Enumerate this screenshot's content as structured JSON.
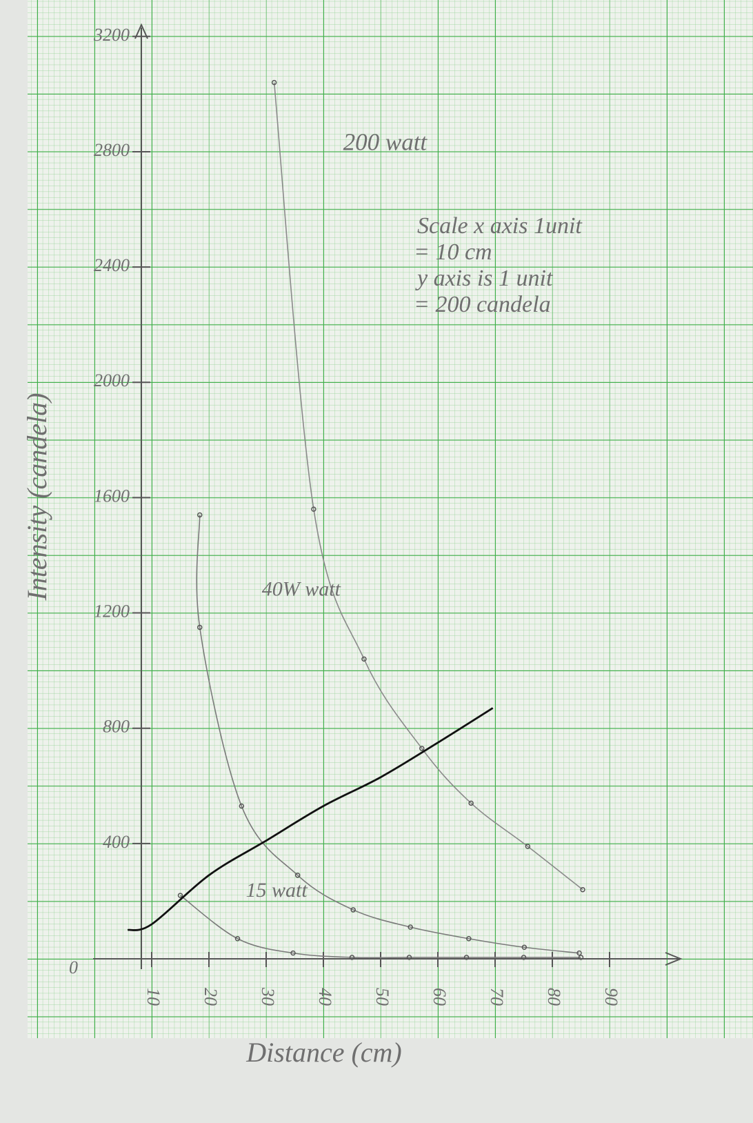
{
  "chart_data": {
    "type": "line",
    "x_label": "Distance (cm)",
    "y_label": "Intensity (candela)",
    "origin_label": "0",
    "note": [
      "Scale x axis 1unit",
      "= 10 cm",
      "y axis is 1 unit",
      "= 200 candela"
    ],
    "xlim": [
      0,
      100
    ],
    "ylim": [
      0,
      3300
    ],
    "xticks": [
      10,
      20,
      30,
      40,
      50,
      60,
      70,
      80,
      90
    ],
    "yticks": [
      400,
      800,
      1200,
      1600,
      2000,
      2400,
      2800,
      3200
    ],
    "grid": true,
    "series": [
      {
        "name": "200 watt",
        "color": "#8a8a8a",
        "markers": true,
        "x": [
          31.4,
          38.3,
          47.1,
          57.2,
          65.8,
          75.7,
          85.3
        ],
        "values": [
          3040,
          1560,
          1040,
          730,
          540,
          390,
          240
        ]
      },
      {
        "name": "40W watt",
        "color": "#7a7a7a",
        "markers": true,
        "x": [
          18.4,
          18.4,
          25.7,
          35.5,
          45.2,
          55.2,
          65.4,
          75.1,
          84.7
        ],
        "values": [
          1540,
          1150,
          530,
          290,
          170,
          110,
          70,
          40,
          20
        ]
      },
      {
        "name": "15 watt",
        "color": "#7a7a7a",
        "markers": true,
        "x": [
          15,
          25,
          34.7,
          45,
          55,
          65,
          75,
          85
        ],
        "values": [
          220,
          70,
          20,
          5,
          5,
          5,
          5,
          5
        ]
      },
      {
        "color": "#111111",
        "markers": false,
        "x": [
          5.8,
          10,
          20,
          30,
          40,
          50,
          60,
          69.6
        ],
        "values": [
          100,
          120,
          290,
          410,
          530,
          630,
          750,
          870
        ]
      }
    ]
  }
}
